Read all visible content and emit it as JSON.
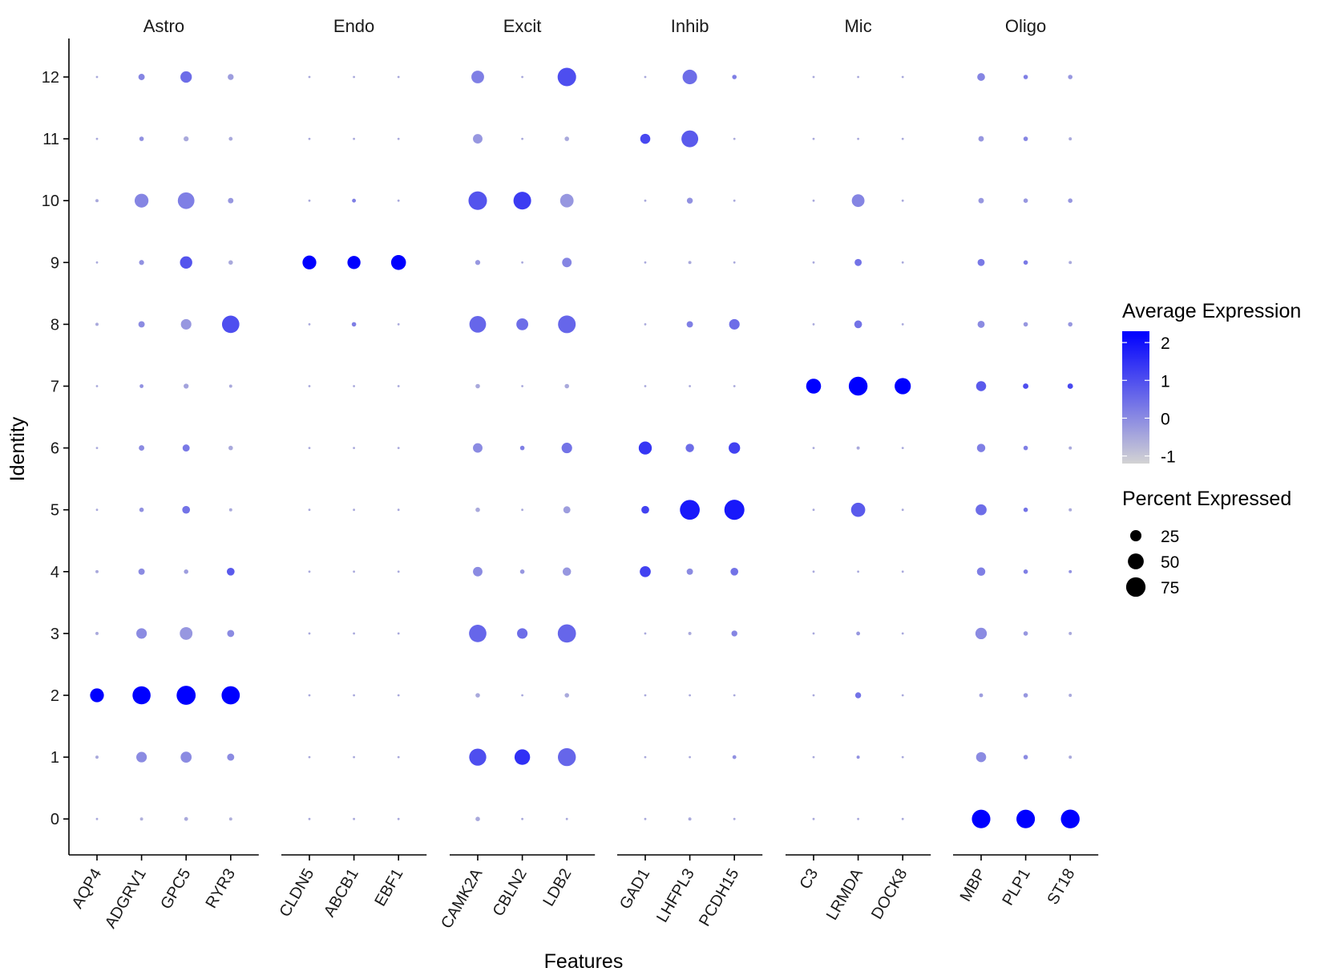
{
  "chart_data": {
    "type": "dotplot",
    "xlabel": "Features",
    "ylabel": "Identity",
    "identities": [
      "0",
      "1",
      "2",
      "3",
      "4",
      "5",
      "6",
      "7",
      "8",
      "9",
      "10",
      "11",
      "12"
    ],
    "groups": [
      {
        "name": "Astro",
        "features": [
          "AQP4",
          "ADGRV1",
          "GPC5",
          "RYR3"
        ]
      },
      {
        "name": "Endo",
        "features": [
          "CLDN5",
          "ABCB1",
          "EBF1"
        ]
      },
      {
        "name": "Excit",
        "features": [
          "CAMK2A",
          "CBLN2",
          "LDB2"
        ]
      },
      {
        "name": "Inhib",
        "features": [
          "GAD1",
          "LHFPL3",
          "PCDH15"
        ]
      },
      {
        "name": "Mic",
        "features": [
          "C3",
          "LRMDA",
          "DOCK8"
        ]
      },
      {
        "name": "Oligo",
        "features": [
          "MBP",
          "PLP1",
          "ST18"
        ]
      }
    ],
    "points": {
      "AQP4": {
        "avg": [
          -0.5,
          -0.5,
          2.3,
          -0.5,
          -0.5,
          -0.5,
          -0.5,
          -0.5,
          -0.5,
          -0.5,
          -0.5,
          -0.5,
          -0.5
        ],
        "pct": [
          1,
          2,
          38,
          2,
          2,
          1,
          1,
          1,
          2,
          1,
          2,
          1,
          1
        ]
      },
      "ADGRV1": {
        "avg": [
          -0.6,
          0.0,
          2.3,
          0.0,
          0.0,
          -0.1,
          0.0,
          -0.1,
          0.0,
          -0.1,
          0.1,
          -0.1,
          0.1
        ],
        "pct": [
          2,
          22,
          65,
          22,
          8,
          4,
          6,
          3,
          8,
          5,
          38,
          4,
          8
        ]
      },
      "GPC5": {
        "avg": [
          -0.5,
          0.0,
          2.3,
          -0.2,
          -0.3,
          0.4,
          0.3,
          -0.4,
          -0.2,
          0.9,
          0.2,
          -0.5,
          0.5
        ],
        "pct": [
          3,
          24,
          72,
          32,
          4,
          12,
          10,
          5,
          22,
          30,
          55,
          5,
          26
        ]
      },
      "RYR3": {
        "avg": [
          -0.6,
          0.0,
          2.3,
          0.0,
          0.8,
          -0.5,
          -0.5,
          -0.5,
          1.0,
          -0.5,
          -0.2,
          -0.5,
          -0.3
        ],
        "pct": [
          2,
          10,
          66,
          10,
          12,
          2,
          4,
          2,
          60,
          4,
          6,
          3,
          7
        ]
      },
      "CLDN5": {
        "avg": [
          -0.5,
          -0.5,
          -0.5,
          -0.5,
          -0.5,
          -0.5,
          -0.5,
          -0.5,
          -0.5,
          2.3,
          -0.5,
          -0.5,
          -0.5
        ],
        "pct": [
          1,
          1,
          1,
          1,
          1,
          1,
          1,
          1,
          1,
          38,
          1,
          1,
          1
        ]
      },
      "ABCB1": {
        "avg": [
          -0.5,
          -0.5,
          -0.5,
          -0.5,
          -0.5,
          -0.5,
          -0.5,
          -0.5,
          0.2,
          2.3,
          0.2,
          -0.5,
          -0.5
        ],
        "pct": [
          1,
          1,
          1,
          1,
          1,
          1,
          1,
          1,
          4,
          34,
          3,
          1,
          1
        ]
      },
      "EBF1": {
        "avg": [
          -0.5,
          -0.5,
          -0.5,
          -0.5,
          -0.5,
          -0.5,
          -0.5,
          -0.5,
          -0.5,
          2.3,
          -0.5,
          -0.5,
          -0.5
        ],
        "pct": [
          1,
          1,
          1,
          1,
          1,
          1,
          1,
          1,
          1,
          44,
          1,
          1,
          1
        ]
      },
      "CAMK2A": {
        "avg": [
          -0.5,
          1.0,
          -0.5,
          0.6,
          0.0,
          -0.5,
          0.0,
          -0.5,
          0.6,
          -0.2,
          0.9,
          -0.2,
          0.2
        ],
        "pct": [
          4,
          58,
          4,
          60,
          18,
          4,
          18,
          4,
          55,
          5,
          68,
          18,
          32
        ]
      },
      "CBLN2": {
        "avg": [
          -0.5,
          1.5,
          -0.5,
          0.5,
          -0.2,
          -0.5,
          0.2,
          -0.5,
          0.5,
          -0.5,
          1.3,
          -0.5,
          -0.5
        ],
        "pct": [
          1,
          48,
          1,
          22,
          4,
          1,
          4,
          1,
          28,
          1,
          62,
          1,
          1
        ]
      },
      "LDB2": {
        "avg": [
          -0.5,
          0.6,
          -0.5,
          0.6,
          -0.2,
          -0.3,
          0.4,
          -0.5,
          0.6,
          0.1,
          -0.2,
          -0.5,
          1.0
        ],
        "pct": [
          1,
          64,
          4,
          66,
          14,
          10,
          22,
          4,
          62,
          18,
          36,
          4,
          68
        ]
      },
      "GAD1": {
        "avg": [
          -0.5,
          -0.5,
          -0.5,
          -0.5,
          1.2,
          1.2,
          1.4,
          -0.5,
          -0.5,
          -0.5,
          -0.5,
          1.1,
          -0.5
        ],
        "pct": [
          1,
          1,
          1,
          1,
          24,
          12,
          34,
          1,
          1,
          1,
          1,
          20,
          1
        ]
      },
      "LHFPL3": {
        "avg": [
          -0.5,
          -0.5,
          -0.5,
          -0.5,
          0.0,
          1.9,
          0.5,
          -0.5,
          0.2,
          -0.5,
          -0.1,
          0.8,
          0.5
        ],
        "pct": [
          2,
          1,
          1,
          2,
          8,
          78,
          14,
          1,
          8,
          2,
          7,
          56,
          42
        ]
      },
      "PCDH15": {
        "avg": [
          -0.5,
          -0.1,
          -0.5,
          0.1,
          0.4,
          1.9,
          1.2,
          -0.5,
          0.5,
          -0.5,
          -0.5,
          -0.5,
          0.2
        ],
        "pct": [
          1,
          3,
          1,
          7,
          12,
          80,
          26,
          1,
          22,
          1,
          1,
          1,
          4
        ]
      },
      "C3": {
        "avg": [
          -0.5,
          -0.5,
          -0.5,
          -0.5,
          -0.5,
          -0.5,
          -0.5,
          2.3,
          -0.5,
          -0.5,
          -0.5,
          -0.5,
          -0.5
        ],
        "pct": [
          1,
          1,
          1,
          1,
          1,
          1,
          1,
          44,
          1,
          1,
          1,
          1,
          1
        ]
      },
      "LRMDA": {
        "avg": [
          -0.5,
          -0.1,
          0.4,
          -0.2,
          -0.5,
          0.8,
          -0.5,
          2.3,
          0.4,
          0.4,
          0.1,
          -0.5,
          -0.5
        ],
        "pct": [
          1,
          2,
          7,
          3,
          1,
          40,
          2,
          70,
          12,
          10,
          32,
          1,
          1
        ]
      },
      "DOCK8": {
        "avg": [
          -0.5,
          -0.5,
          -0.5,
          -0.5,
          -0.5,
          -0.5,
          -0.5,
          2.3,
          -0.5,
          -0.5,
          -0.5,
          -0.5,
          -0.5
        ],
        "pct": [
          1,
          1,
          1,
          1,
          1,
          1,
          1,
          52,
          1,
          1,
          1,
          1,
          1
        ]
      },
      "MBP": {
        "avg": [
          2.3,
          0.0,
          -0.3,
          0.0,
          0.2,
          0.5,
          0.2,
          0.8,
          0.0,
          0.3,
          -0.2,
          -0.2,
          0.1
        ],
        "pct": [
          68,
          20,
          3,
          26,
          14,
          24,
          14,
          20,
          10,
          10,
          6,
          6,
          12
        ]
      },
      "PLP1": {
        "avg": [
          2.3,
          0.0,
          -0.2,
          -0.2,
          0.2,
          0.4,
          0.2,
          1.0,
          -0.2,
          0.3,
          -0.2,
          0.1,
          0.2
        ],
        "pct": [
          68,
          4,
          4,
          4,
          4,
          4,
          4,
          6,
          4,
          4,
          4,
          4,
          4
        ]
      },
      "ST18": {
        "avg": [
          2.3,
          -0.5,
          -0.5,
          -0.5,
          -0.1,
          -0.5,
          -0.5,
          1.1,
          -0.2,
          -0.5,
          -0.2,
          -0.5,
          -0.2
        ],
        "pct": [
          70,
          2,
          2,
          2,
          2,
          2,
          2,
          6,
          4,
          2,
          4,
          2,
          4
        ]
      }
    },
    "legend": {
      "color_title": "Average Expression",
      "color_ticks": [
        "2",
        "1",
        "0",
        "-1"
      ],
      "color_tick_values": [
        2,
        1,
        0,
        -1
      ],
      "color_min": -1.2,
      "color_max": 2.3,
      "color_low": "#d3d3d3",
      "color_high": "#0000ff",
      "size_title": "Percent Expressed",
      "size_ticks": [
        "25",
        "50",
        "75"
      ],
      "size_tick_values": [
        25,
        50,
        75
      ]
    }
  }
}
